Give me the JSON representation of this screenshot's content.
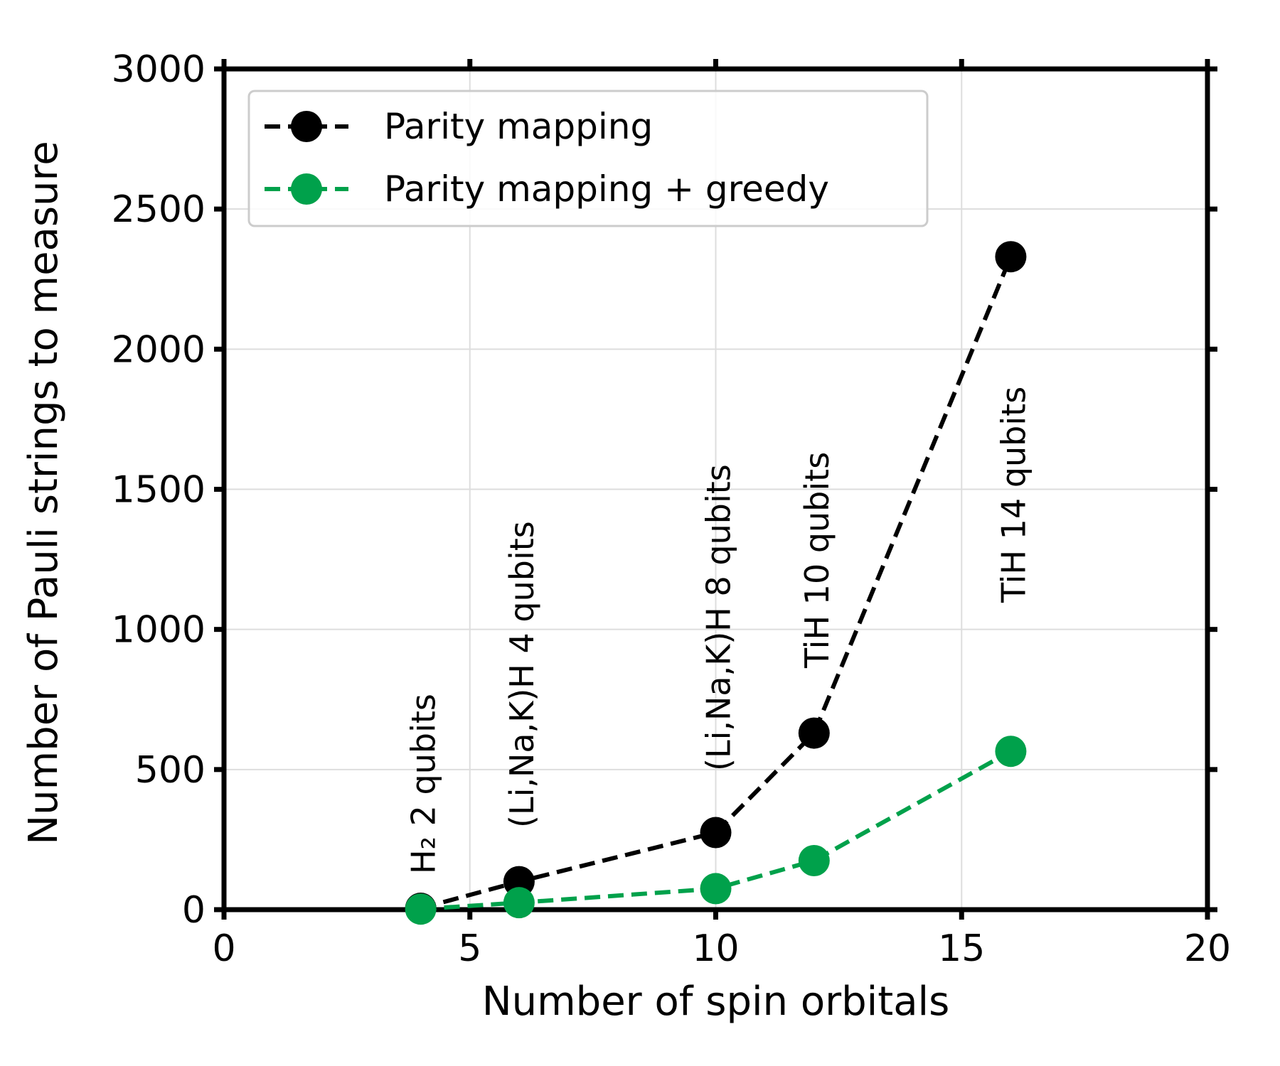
{
  "chart_data": {
    "type": "line",
    "xlabel": "Number of spin orbitals",
    "ylabel": "Number of Pauli strings to measure",
    "xlim": [
      0,
      20
    ],
    "ylim": [
      0,
      3000
    ],
    "xticks": [
      "0",
      "5",
      "10",
      "15",
      "20"
    ],
    "yticks": [
      "0",
      "500",
      "1000",
      "1500",
      "2000",
      "2500",
      "3000"
    ],
    "grid": true,
    "legend_position": "top-left",
    "series": [
      {
        "name": "Parity mapping",
        "color": "#000000",
        "line_style": "dashed",
        "marker": "circle",
        "x": [
          4,
          6,
          10,
          12,
          16
        ],
        "y": [
          5,
          100,
          275,
          630,
          2330
        ]
      },
      {
        "name": "Parity mapping + greedy",
        "color": "#00a14b",
        "line_style": "dashed",
        "marker": "circle",
        "x": [
          4,
          6,
          10,
          12,
          16
        ],
        "y": [
          2,
          25,
          75,
          175,
          565
        ]
      }
    ],
    "annotations": [
      {
        "text": "H₂ 2 qubits",
        "x": 4,
        "y": 0,
        "rotation": -90
      },
      {
        "text": "(Li,Na,K)H 4 qubits",
        "x": 6,
        "y": 0,
        "rotation": -90
      },
      {
        "text": "(Li,Na,K)H 8 qubits",
        "x": 10,
        "y": 0,
        "rotation": -90
      },
      {
        "text": "TiH 10 qubits",
        "x": 12,
        "y": 0,
        "rotation": -90
      },
      {
        "text": "TiH 14 qubits",
        "x": 16,
        "y": 0,
        "rotation": -90
      }
    ]
  }
}
